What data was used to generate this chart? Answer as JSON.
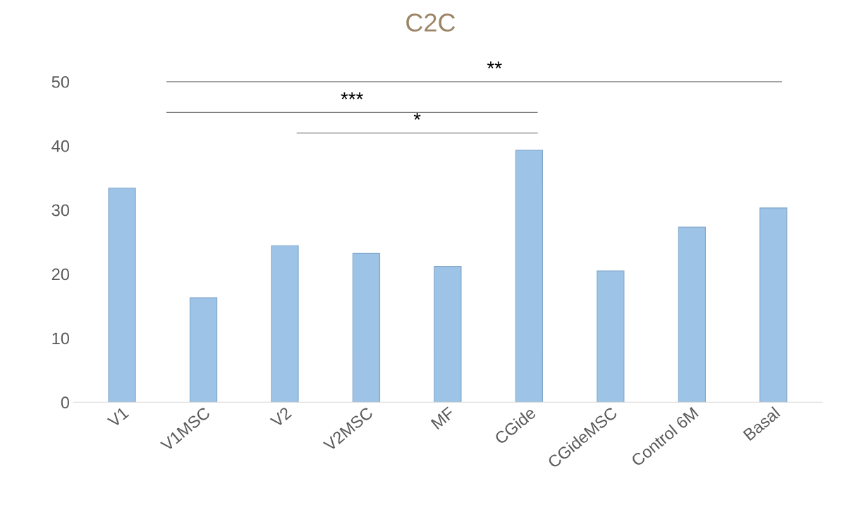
{
  "chart_data": {
    "type": "bar",
    "title": "C2C",
    "categories": [
      "V1",
      "V1MSC",
      "V2",
      "V2MSC",
      "MF",
      "CGide",
      "CGideMSC",
      "Control 6M",
      "Basal"
    ],
    "values": [
      33.4,
      16.3,
      24.4,
      23.2,
      21.2,
      39.3,
      20.5,
      27.3,
      30.3
    ],
    "color": "#9dc3e6",
    "ylim": [
      0,
      50
    ],
    "yticks": [
      0,
      10,
      20,
      30,
      40,
      50
    ],
    "grid": false,
    "annotations": [
      "**",
      "***",
      "*"
    ]
  }
}
